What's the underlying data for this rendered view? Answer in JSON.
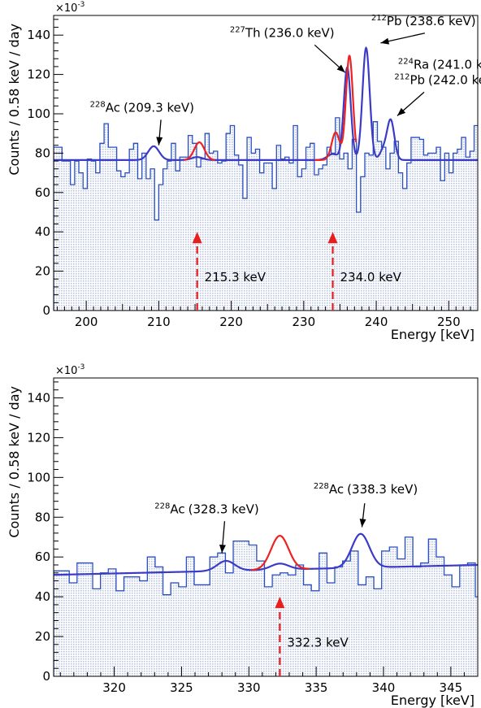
{
  "chart_data": [
    {
      "type": "histogram",
      "title": "",
      "xlabel": "Energy [keV]",
      "ylabel": "Counts / 0.58 keV / day",
      "scale_label": "×10",
      "scale_exp": "-3",
      "xlim": [
        195.5,
        254.0
      ],
      "ylim": [
        0,
        150
      ],
      "xticks": [
        200,
        210,
        220,
        230,
        240,
        250
      ],
      "yticks": [
        0,
        20,
        40,
        60,
        80,
        100,
        120,
        140
      ],
      "grid": false,
      "colors": {
        "hist_line": "#2a4fbf",
        "hist_fill": "#b9c7e4",
        "fit_blue": "#3b3bc6",
        "fit_red": "#ee2222",
        "marker": "#e81e1e"
      },
      "bin_width": 0.58,
      "histogram": [
        83,
        83,
        76,
        76,
        64,
        76,
        70,
        62,
        77,
        76,
        70,
        85,
        95,
        83,
        83,
        71,
        68,
        70,
        82,
        85,
        67,
        80,
        67,
        72,
        46,
        64,
        72,
        76,
        85,
        71,
        78,
        78,
        89,
        85,
        73,
        77,
        90,
        80,
        81,
        75,
        76,
        90,
        94,
        79,
        74,
        57,
        88,
        80,
        82,
        70,
        75,
        75,
        62,
        84,
        77,
        78,
        75,
        94,
        68,
        72,
        83,
        85,
        69,
        72,
        74,
        83,
        80,
        98,
        77,
        80,
        72,
        87,
        50,
        68,
        80,
        79,
        96,
        86,
        83,
        72,
        80,
        86,
        70,
        62,
        75,
        88,
        88,
        87,
        79,
        80,
        80,
        83,
        66,
        80,
        70,
        80,
        82,
        88,
        78,
        81,
        94,
        87,
        80,
        72,
        74,
        76,
        88,
        93,
        78,
        75,
        78,
        76,
        70,
        80,
        93,
        75,
        83,
        86,
        81,
        78,
        88,
        80,
        99,
        80,
        92,
        78,
        87,
        77,
        98,
        129,
        123,
        95,
        95,
        80,
        81,
        99,
        111,
        138,
        115,
        97,
        90,
        95,
        77,
        81,
        80,
        85,
        90,
        96,
        95,
        101,
        84,
        66,
        58,
        64,
        80,
        76,
        61,
        73,
        86,
        74,
        70,
        72,
        77,
        77,
        80,
        70,
        70,
        72,
        84,
        77,
        83,
        81,
        77,
        88,
        71,
        83,
        89,
        81,
        94,
        77,
        75,
        78,
        80,
        73,
        80,
        65,
        70,
        72,
        90,
        71,
        71,
        65,
        82,
        78,
        79,
        87,
        70,
        73,
        77,
        75,
        75,
        82,
        78,
        86,
        85,
        80,
        90,
        84,
        80,
        77,
        78,
        76
      ],
      "fit_baseline": {
        "x": [
          195.5,
          254.0
        ],
        "y": [
          76.5,
          76.5
        ]
      },
      "peaks_blue": [
        {
          "center": 209.3,
          "amp": 7,
          "sigma": 0.75
        },
        {
          "center": 215.3,
          "amp": 1.5,
          "sigma": 0.75
        },
        {
          "center": 234.0,
          "amp": 3,
          "sigma": 0.75
        },
        {
          "center": 236.0,
          "amp": 47,
          "sigma": 0.48
        },
        {
          "center": 238.6,
          "amp": 57,
          "sigma": 0.5
        },
        {
          "center": 241.0,
          "amp": 5,
          "sigma": 0.5
        },
        {
          "center": 242.0,
          "amp": 20,
          "sigma": 0.5
        }
      ],
      "peaks_red": [
        {
          "center": 215.6,
          "amp": 9,
          "sigma": 0.7,
          "range": [
            213.5,
            217.8
          ]
        },
        {
          "center": 234.4,
          "amp": 14,
          "sigma": 0.55,
          "range": [
            231.5,
            237.2
          ]
        },
        {
          "center": 236.3,
          "amp": 53,
          "sigma": 0.48,
          "range": [
            231.5,
            237.2
          ]
        }
      ],
      "markers": [
        {
          "x": 215.3,
          "label": "215.3 keV",
          "y_top": 40,
          "y_label": 17
        },
        {
          "x": 234.0,
          "label": "234.0 keV",
          "y_top": 40,
          "y_label": 17
        }
      ],
      "annotations": [
        {
          "element": "Ac",
          "mass": "228",
          "energy": "(209.3 keV)",
          "tx": 200.5,
          "ty": 101,
          "ax": 210.3,
          "ay": 97,
          "hx": 210.0,
          "hy": 84
        },
        {
          "element": "Th",
          "mass": "227",
          "energy": "(236.0 keV)",
          "tx": 219.8,
          "ty": 139,
          "ax": 231.5,
          "ay": 135,
          "hx": 235.7,
          "hy": 121
        },
        {
          "element": "Pb",
          "mass": "212",
          "energy": "(238.6 keV)",
          "tx": 239.3,
          "ty": 145,
          "ax": 246.7,
          "ay": 141,
          "hx": 240.6,
          "hy": 136
        },
        {
          "element": "Ra",
          "mass": "224",
          "energy": "(241.0 keV)",
          "tx": 243.0,
          "ty": 123,
          "ax": 0,
          "ay": 0,
          "hx": 0,
          "hy": 0
        },
        {
          "element": "Pb",
          "mass": "212",
          "energy": "(242.0 keV)",
          "tx": 242.5,
          "ty": 115,
          "ax": 246.6,
          "ay": 111,
          "hx": 242.9,
          "hy": 99
        }
      ]
    },
    {
      "type": "histogram",
      "title": "",
      "xlabel": "Energy [keV]",
      "ylabel": "Counts / 0.58 keV / day",
      "scale_label": "×10",
      "scale_exp": "-3",
      "xlim": [
        315.5,
        347.0
      ],
      "ylim": [
        0,
        150
      ],
      "xticks": [
        320,
        325,
        330,
        335,
        340,
        345
      ],
      "yticks": [
        0,
        20,
        40,
        60,
        80,
        100,
        120,
        140
      ],
      "grid": false,
      "colors": {
        "hist_line": "#2a4fbf",
        "hist_fill": "#b9c7e4",
        "fit_blue": "#3b3bc6",
        "fit_red": "#ee2222",
        "marker": "#e81e1e"
      },
      "bin_width": 0.58,
      "histogram": [
        53,
        53,
        47,
        57,
        57,
        44,
        52,
        54,
        43,
        50,
        50,
        48,
        60,
        55,
        41,
        47,
        45,
        60,
        46,
        46,
        60,
        62,
        52,
        68,
        68,
        66,
        58,
        45,
        51,
        52,
        51,
        56,
        46,
        43,
        62,
        47,
        55,
        58,
        63,
        46,
        50,
        44,
        63,
        65,
        59,
        70,
        55,
        57,
        69,
        60,
        51,
        45,
        56,
        57,
        40,
        62,
        58,
        68,
        60,
        52,
        60,
        71,
        66,
        47,
        66,
        63,
        62,
        42,
        57,
        68,
        68,
        66,
        43,
        40,
        62,
        48,
        57,
        48,
        49,
        51,
        69,
        60,
        65,
        72,
        47,
        66,
        41,
        60,
        60,
        58,
        55,
        61,
        55,
        65,
        45,
        48,
        64,
        65,
        70,
        56,
        55,
        71,
        62,
        51,
        42,
        52,
        54,
        62
      ],
      "fit_baseline": {
        "x": [
          315.5,
          347.0
        ],
        "y": [
          51,
          56
        ]
      },
      "peaks_blue": [
        {
          "center": 328.3,
          "amp": 5,
          "sigma": 0.65
        },
        {
          "center": 332.3,
          "amp": 3,
          "sigma": 0.65
        },
        {
          "center": 338.3,
          "amp": 17,
          "sigma": 0.65
        }
      ],
      "peaks_red": [
        {
          "center": 332.3,
          "amp": 17,
          "sigma": 0.65,
          "range": [
            330.2,
            334.5
          ]
        }
      ],
      "markers": [
        {
          "x": 332.3,
          "label": "332.3 keV",
          "y_top": 40,
          "y_label": 17
        }
      ],
      "annotations": [
        {
          "element": "Ac",
          "mass": "228",
          "energy": "(328.3 keV)",
          "tx": 323.0,
          "ty": 82,
          "ax": 328.2,
          "ay": 78,
          "hx": 328.0,
          "hy": 62
        },
        {
          "element": "Ac",
          "mass": "228",
          "energy": "(338.3 keV)",
          "tx": 334.8,
          "ty": 92,
          "ax": 338.6,
          "ay": 87,
          "hx": 338.4,
          "hy": 75
        }
      ]
    }
  ]
}
